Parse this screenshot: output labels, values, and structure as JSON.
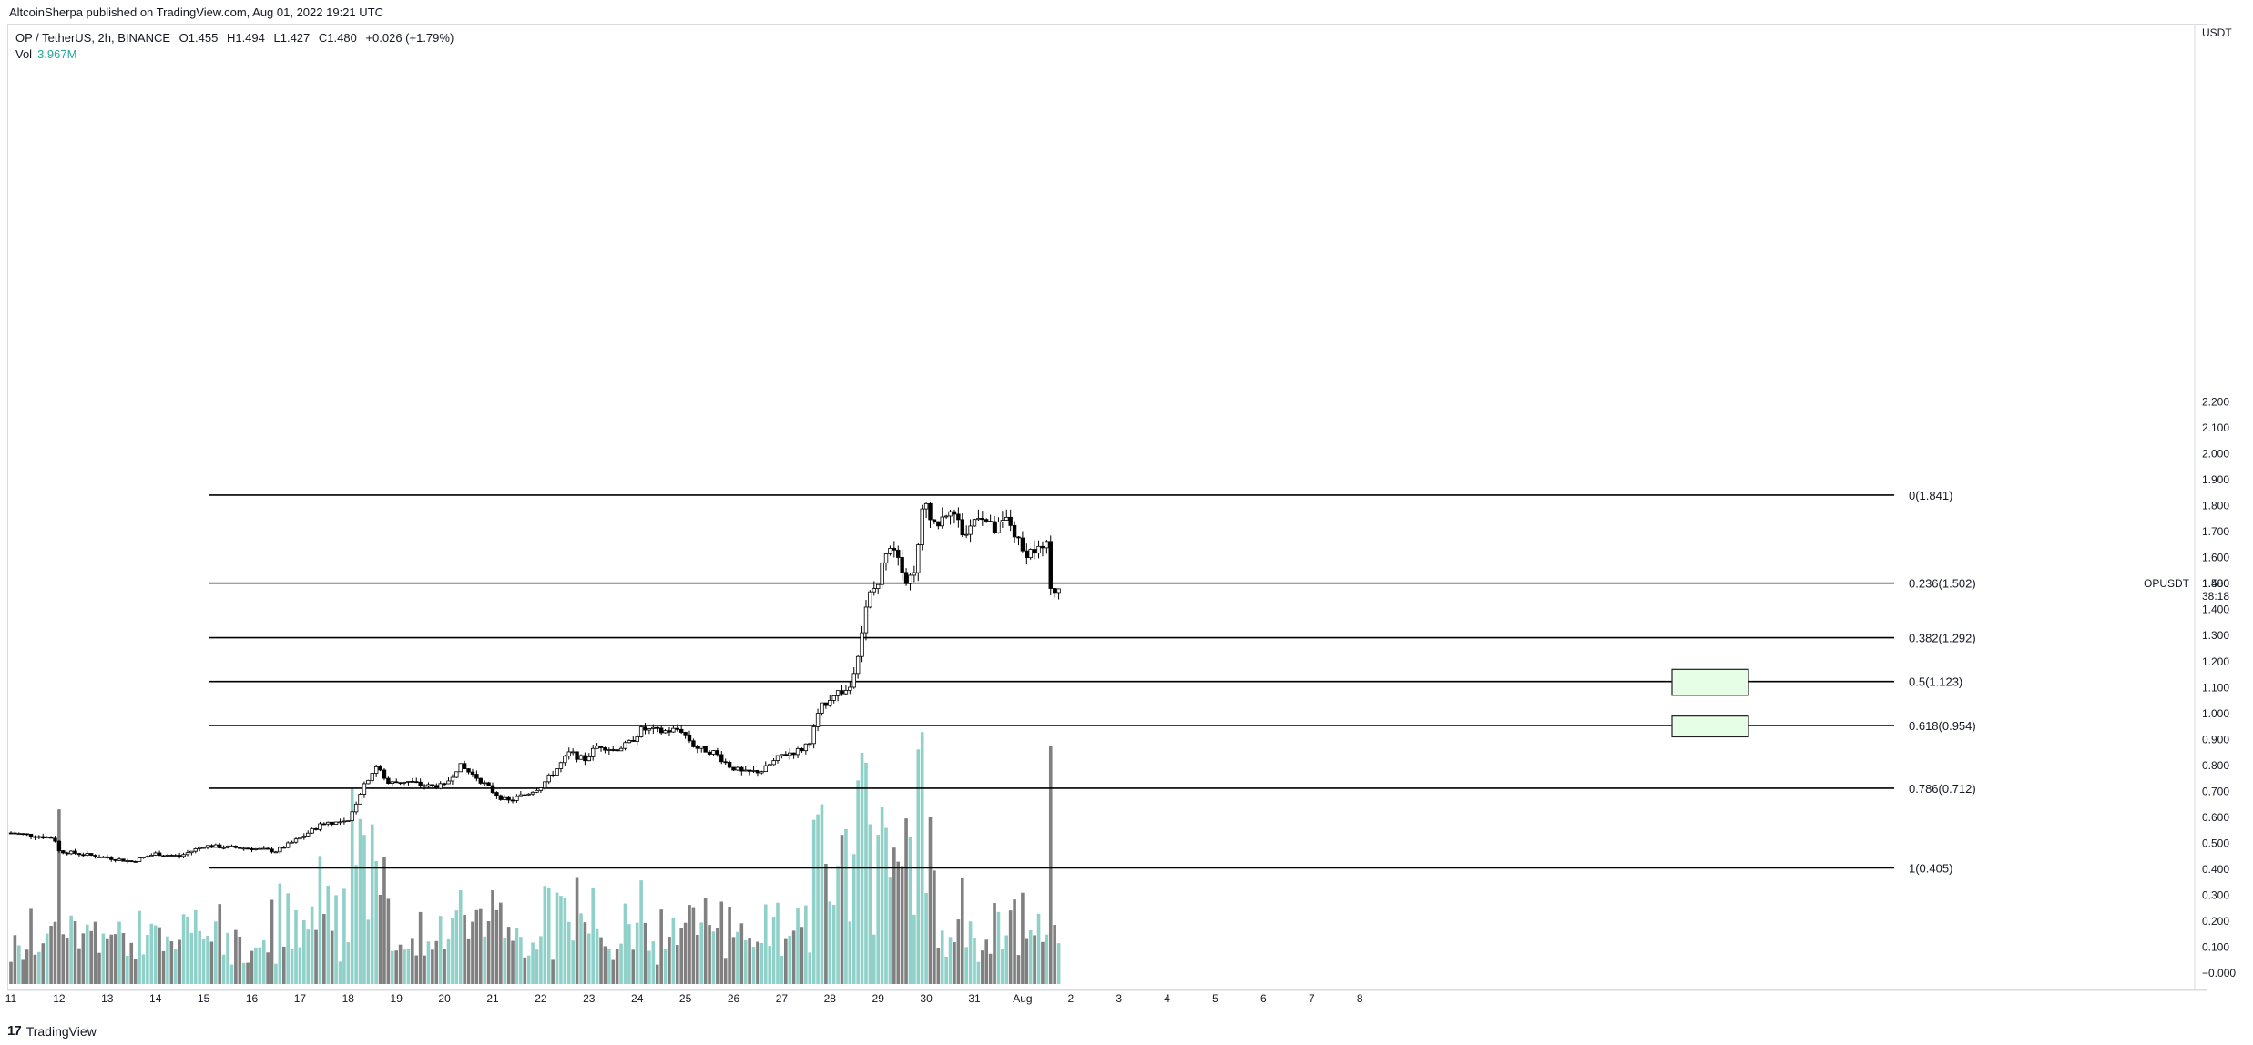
{
  "header": {
    "published": "AltcoinSherpa published on TradingView.com, Aug 01, 2022 19:21 UTC",
    "symbol": "OP / TetherUS, 2h, BINANCE",
    "open": "O1.455",
    "high": "H1.494",
    "low": "L1.427",
    "close": "C1.480",
    "change": "+0.026 (+1.79%)",
    "vol_label": "Vol",
    "vol_value": "3.967M"
  },
  "footer": {
    "logo": "17",
    "brand": "TradingView"
  },
  "price_axis": {
    "currency": "USDT",
    "ticks": [
      "2.200",
      "2.100",
      "2.000",
      "1.900",
      "1.800",
      "1.700",
      "1.600",
      "1.500",
      "1.400",
      "1.300",
      "1.200",
      "1.100",
      "1.000",
      "0.900",
      "0.800",
      "0.700",
      "0.600",
      "0.500",
      "0.400",
      "0.300",
      "0.200",
      "0.100",
      "0.000"
    ],
    "last_price_symbol": "OPUSDT",
    "last_price": "1.480",
    "countdown": "38:18"
  },
  "colors": {
    "up": "#ffffff",
    "down": "#000000",
    "vol_up": "#8fd0c8",
    "vol_down": "#808080",
    "zone_fill": "#e6fde6",
    "zone_stroke": "#1f1f1f"
  },
  "chart_data": {
    "type": "candlestick",
    "title": "OP / TetherUS, 2h, BINANCE",
    "x_ticks": [
      "11",
      "12",
      "13",
      "14",
      "15",
      "16",
      "17",
      "18",
      "19",
      "20",
      "21",
      "22",
      "23",
      "24",
      "25",
      "26",
      "27",
      "28",
      "29",
      "30",
      "31",
      "Aug",
      "2",
      "3",
      "4",
      "5",
      "6",
      "7",
      "8"
    ],
    "ylim": [
      -0.05,
      2.25
    ],
    "grid": false,
    "fib_levels": [
      {
        "ratio": "0",
        "value": 1.841,
        "label": "0(1.841)"
      },
      {
        "ratio": "0.236",
        "value": 1.502,
        "label": "0.236(1.502)"
      },
      {
        "ratio": "0.382",
        "value": 1.292,
        "label": "0.382(1.292)"
      },
      {
        "ratio": "0.5",
        "value": 1.123,
        "label": "0.5(1.123)"
      },
      {
        "ratio": "0.618",
        "value": 0.954,
        "label": "0.618(0.954)"
      },
      {
        "ratio": "0.786",
        "value": 0.712,
        "label": "0.786(0.712)"
      },
      {
        "ratio": "1",
        "value": 0.405,
        "label": "1(0.405)"
      }
    ],
    "zones": [
      {
        "from": 1.07,
        "to": 1.17
      },
      {
        "from": 0.91,
        "to": 0.99
      }
    ],
    "price_path_days": [
      {
        "day": 11.0,
        "price": 0.54
      },
      {
        "day": 11.9,
        "price": 0.52
      },
      {
        "day": 12.0,
        "price": 0.47
      },
      {
        "day": 12.8,
        "price": 0.45
      },
      {
        "day": 13.5,
        "price": 0.43
      },
      {
        "day": 14.0,
        "price": 0.46
      },
      {
        "day": 14.5,
        "price": 0.45
      },
      {
        "day": 15.0,
        "price": 0.49
      },
      {
        "day": 16.0,
        "price": 0.48
      },
      {
        "day": 16.5,
        "price": 0.47
      },
      {
        "day": 17.0,
        "price": 0.52
      },
      {
        "day": 17.5,
        "price": 0.58
      },
      {
        "day": 18.0,
        "price": 0.58
      },
      {
        "day": 18.3,
        "price": 0.72
      },
      {
        "day": 18.6,
        "price": 0.8
      },
      {
        "day": 18.8,
        "price": 0.73
      },
      {
        "day": 19.2,
        "price": 0.74
      },
      {
        "day": 19.6,
        "price": 0.72
      },
      {
        "day": 20.0,
        "price": 0.72
      },
      {
        "day": 20.3,
        "price": 0.8
      },
      {
        "day": 20.7,
        "price": 0.75
      },
      {
        "day": 21.0,
        "price": 0.7
      },
      {
        "day": 21.3,
        "price": 0.66
      },
      {
        "day": 21.7,
        "price": 0.69
      },
      {
        "day": 22.0,
        "price": 0.72
      },
      {
        "day": 22.3,
        "price": 0.78
      },
      {
        "day": 22.6,
        "price": 0.85
      },
      {
        "day": 22.9,
        "price": 0.82
      },
      {
        "day": 23.2,
        "price": 0.88
      },
      {
        "day": 23.5,
        "price": 0.86
      },
      {
        "day": 23.8,
        "price": 0.88
      },
      {
        "day": 24.1,
        "price": 0.94
      },
      {
        "day": 24.5,
        "price": 0.93
      },
      {
        "day": 24.9,
        "price": 0.94
      },
      {
        "day": 25.2,
        "price": 0.87
      },
      {
        "day": 25.6,
        "price": 0.85
      },
      {
        "day": 25.9,
        "price": 0.8
      },
      {
        "day": 26.2,
        "price": 0.77
      },
      {
        "day": 26.6,
        "price": 0.78
      },
      {
        "day": 27.0,
        "price": 0.84
      },
      {
        "day": 27.4,
        "price": 0.86
      },
      {
        "day": 27.6,
        "price": 0.9
      },
      {
        "day": 27.8,
        "price": 1.02
      },
      {
        "day": 28.1,
        "price": 1.08
      },
      {
        "day": 28.4,
        "price": 1.09
      },
      {
        "day": 28.6,
        "price": 1.25
      },
      {
        "day": 28.8,
        "price": 1.45
      },
      {
        "day": 29.0,
        "price": 1.5
      },
      {
        "day": 29.2,
        "price": 1.66
      },
      {
        "day": 29.4,
        "price": 1.63
      },
      {
        "day": 29.6,
        "price": 1.5
      },
      {
        "day": 29.8,
        "price": 1.58
      },
      {
        "day": 29.95,
        "price": 1.83
      },
      {
        "day": 30.2,
        "price": 1.72
      },
      {
        "day": 30.5,
        "price": 1.8
      },
      {
        "day": 30.8,
        "price": 1.68
      },
      {
        "day": 31.1,
        "price": 1.78
      },
      {
        "day": 31.4,
        "price": 1.7
      },
      {
        "day": 31.7,
        "price": 1.75
      },
      {
        "day": 32.0,
        "price": 1.62
      },
      {
        "day": 32.3,
        "price": 1.63
      },
      {
        "day": 32.5,
        "price": 1.64
      },
      {
        "day": 32.6,
        "price": 1.47
      },
      {
        "day": 32.75,
        "price": 1.48
      }
    ],
    "volume_axis_max": 0.6
  }
}
